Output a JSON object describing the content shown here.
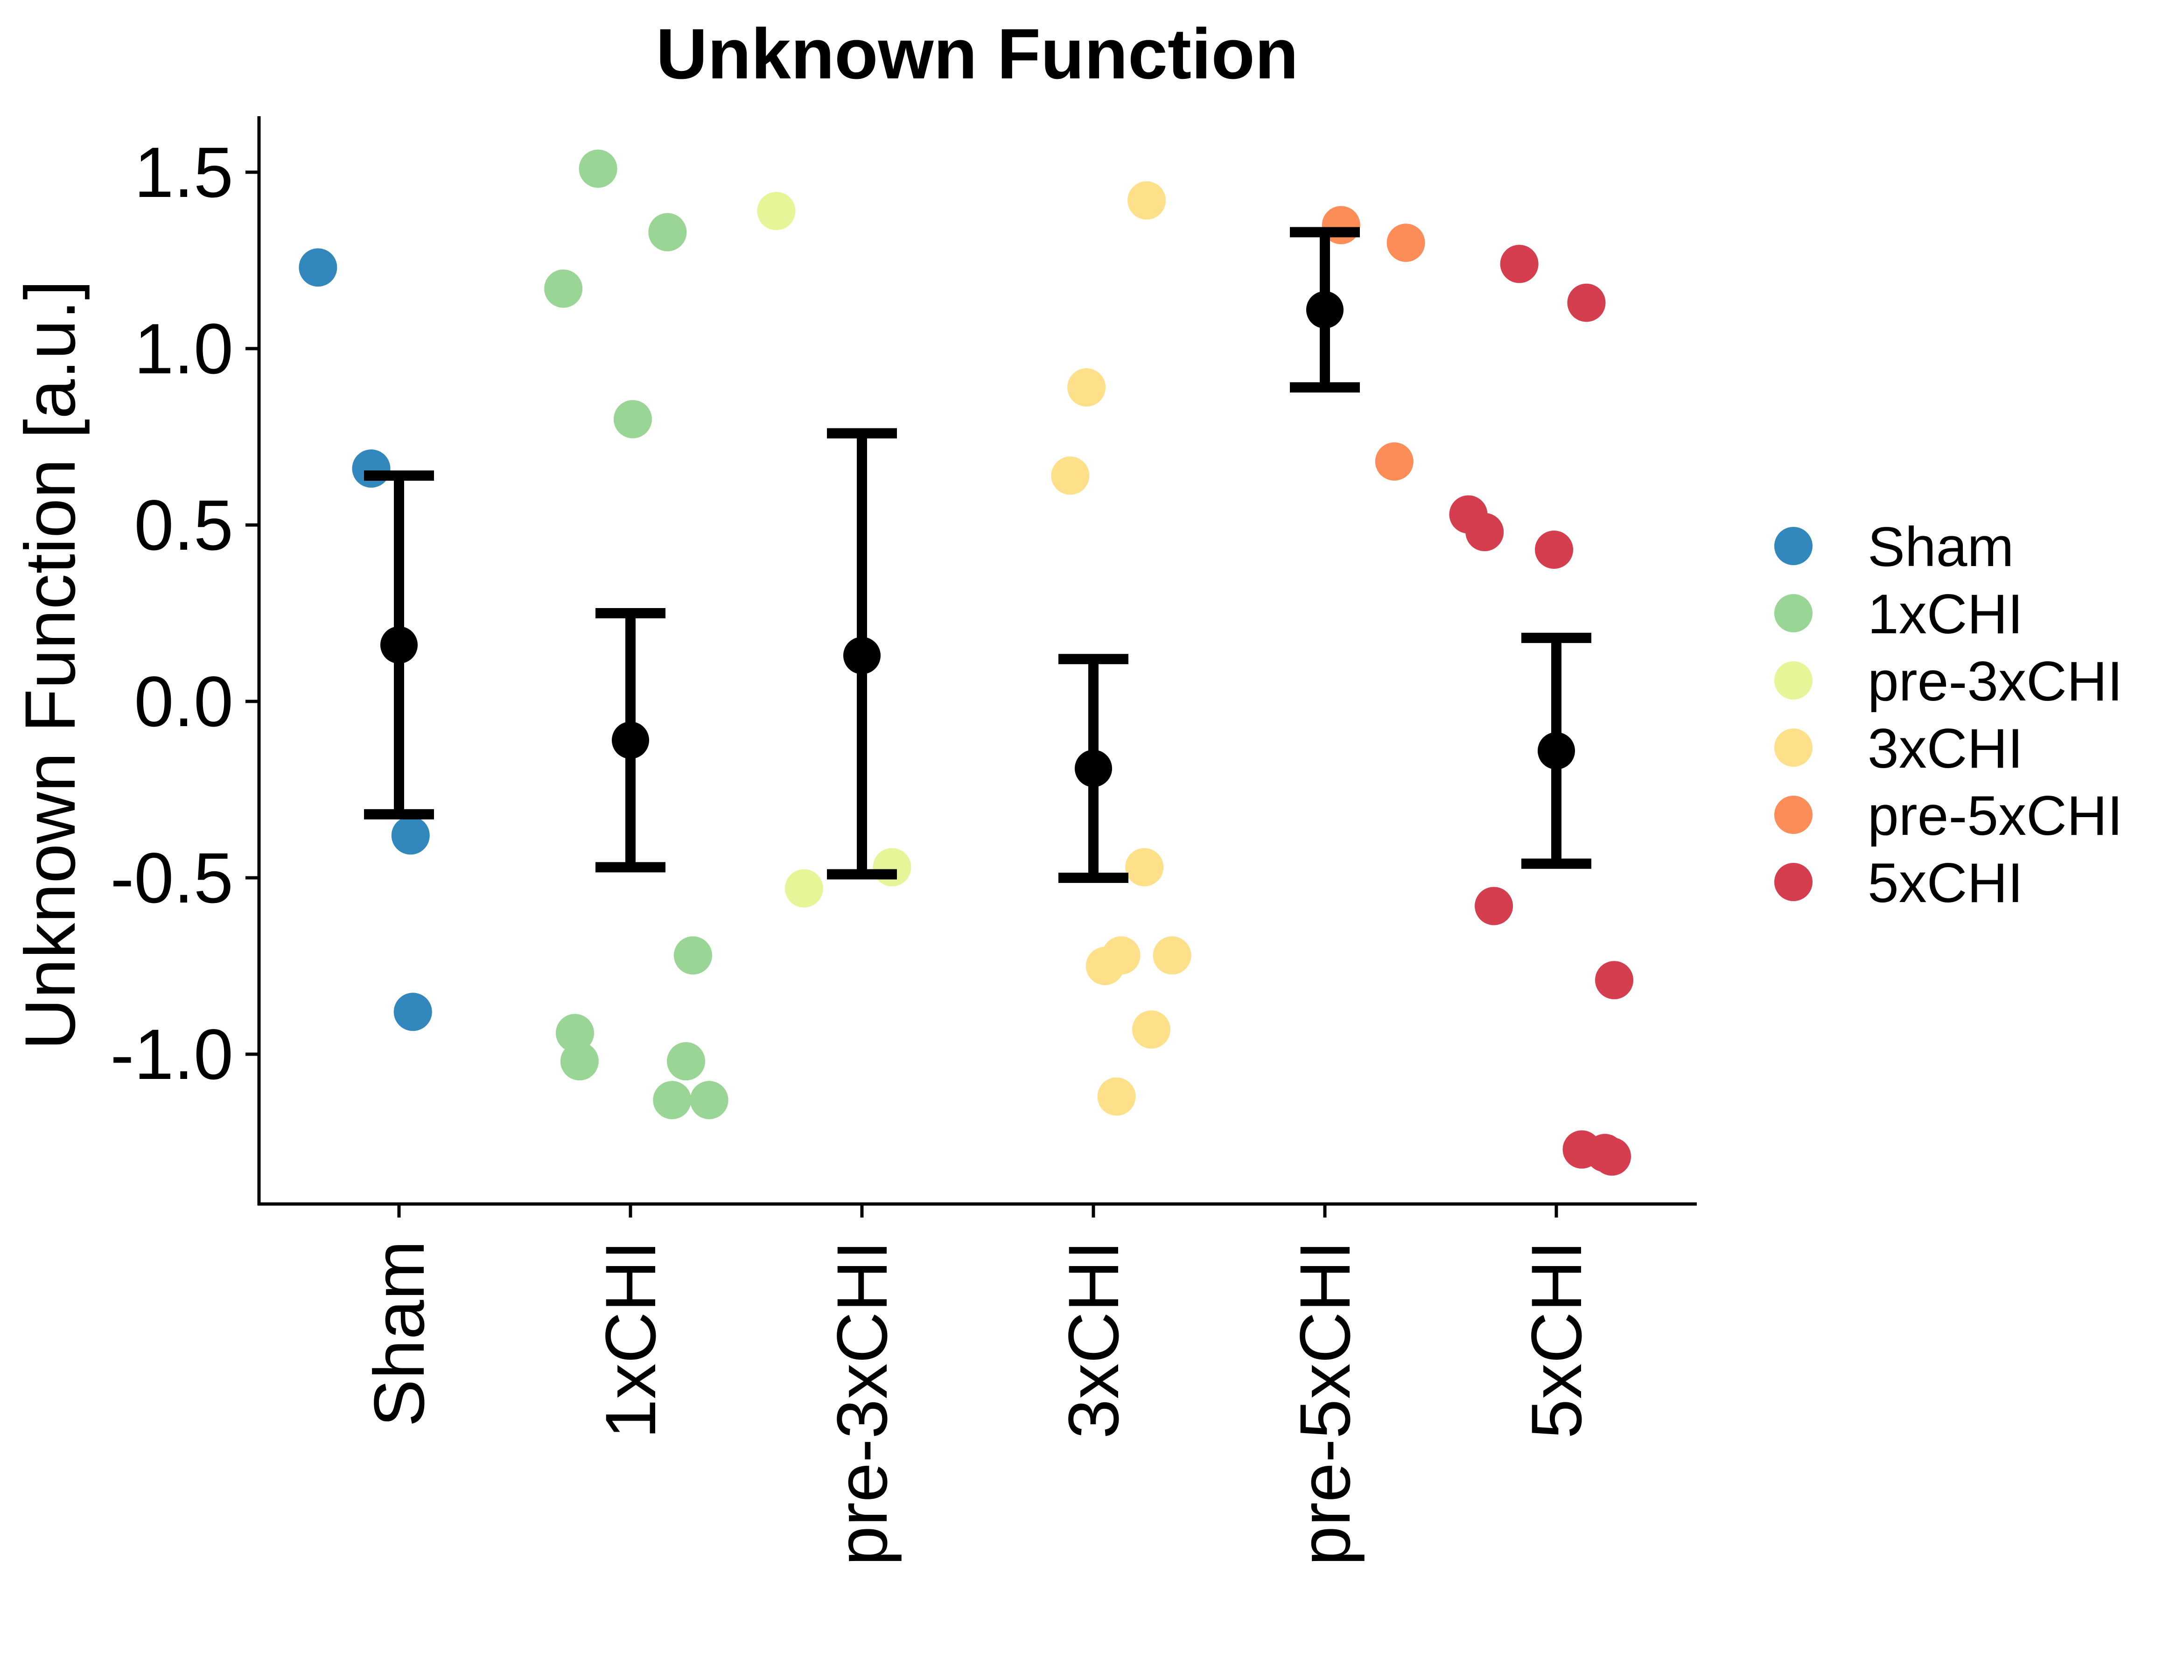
{
  "chart_data": {
    "type": "scatter",
    "title": "Unknown Function",
    "xlabel": "",
    "ylabel": "Unknown Function [a.u.]",
    "ylim": [
      -1.42,
      1.66
    ],
    "yticks": [
      1.5,
      1.0,
      0.5,
      0.0,
      -0.5,
      -1.0
    ],
    "ytick_labels": [
      "1.5",
      "1.0",
      "0.5",
      "0.0",
      "-0.5",
      "-1.0"
    ],
    "categories": [
      "Sham",
      "1xCHI",
      "pre-3xCHI",
      "3xCHI",
      "pre-5xCHI",
      "5xCHI"
    ],
    "grid": false,
    "legend_position": "right",
    "series": [
      {
        "name": "Sham",
        "color": "#3288bd",
        "points": [
          {
            "jitter": -0.35,
            "y": 1.23
          },
          {
            "jitter": -0.12,
            "y": 0.66
          },
          {
            "jitter": 0.05,
            "y": -0.38
          },
          {
            "jitter": 0.06,
            "y": -0.88
          }
        ],
        "summary": {
          "mean": 0.16,
          "lower": -0.32,
          "upper": 0.64
        }
      },
      {
        "name": "1xCHI",
        "color": "#99d594",
        "points": [
          {
            "jitter": -0.14,
            "y": 1.51
          },
          {
            "jitter": -0.29,
            "y": 1.17
          },
          {
            "jitter": 0.16,
            "y": 1.33
          },
          {
            "jitter": 0.01,
            "y": 0.8
          },
          {
            "jitter": 0.27,
            "y": -0.72
          },
          {
            "jitter": -0.24,
            "y": -0.94
          },
          {
            "jitter": -0.22,
            "y": -1.02
          },
          {
            "jitter": 0.24,
            "y": -1.02
          },
          {
            "jitter": 0.18,
            "y": -1.13
          },
          {
            "jitter": 0.34,
            "y": -1.13
          }
        ],
        "summary": {
          "mean": -0.11,
          "lower": -0.47,
          "upper": 0.25
        }
      },
      {
        "name": "pre-3xCHI",
        "color": "#e6f598",
        "points": [
          {
            "jitter": -0.37,
            "y": 1.39
          },
          {
            "jitter": -0.25,
            "y": -0.53
          },
          {
            "jitter": 0.13,
            "y": -0.47
          }
        ],
        "summary": {
          "mean": 0.13,
          "lower": -0.49,
          "upper": 0.76
        }
      },
      {
        "name": "3xCHI",
        "color": "#fee08b",
        "points": [
          {
            "jitter": 0.23,
            "y": 1.42
          },
          {
            "jitter": -0.03,
            "y": 0.89
          },
          {
            "jitter": -0.1,
            "y": 0.64
          },
          {
            "jitter": 0.22,
            "y": -0.47
          },
          {
            "jitter": 0.34,
            "y": -0.72
          },
          {
            "jitter": 0.12,
            "y": -0.72
          },
          {
            "jitter": 0.05,
            "y": -0.75
          },
          {
            "jitter": 0.25,
            "y": -0.93
          },
          {
            "jitter": 0.1,
            "y": -1.12
          }
        ],
        "summary": {
          "mean": -0.19,
          "lower": -0.5,
          "upper": 0.12
        }
      },
      {
        "name": "pre-5xCHI",
        "color": "#fc8d59",
        "points": [
          {
            "jitter": 0.07,
            "y": 1.35
          },
          {
            "jitter": 0.35,
            "y": 1.3
          },
          {
            "jitter": 0.3,
            "y": 0.68
          }
        ],
        "summary": {
          "mean": 1.11,
          "lower": 0.89,
          "upper": 1.33
        }
      },
      {
        "name": "5xCHI",
        "color": "#d53e4f",
        "points": [
          {
            "jitter": -0.16,
            "y": 1.24
          },
          {
            "jitter": 0.13,
            "y": 1.13
          },
          {
            "jitter": -0.38,
            "y": 0.53
          },
          {
            "jitter": -0.31,
            "y": 0.48
          },
          {
            "jitter": -0.01,
            "y": 0.43
          },
          {
            "jitter": -0.27,
            "y": -0.58
          },
          {
            "jitter": 0.25,
            "y": -0.79
          },
          {
            "jitter": 0.11,
            "y": -1.27
          },
          {
            "jitter": 0.21,
            "y": -1.28
          },
          {
            "jitter": 0.24,
            "y": -1.29
          }
        ],
        "summary": {
          "mean": -0.14,
          "lower": -0.46,
          "upper": 0.18
        }
      }
    ]
  }
}
